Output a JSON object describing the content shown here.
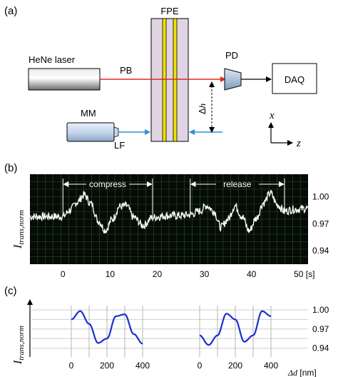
{
  "panel_a": {
    "label": "(a)",
    "fpe": "FPE",
    "laser": "HeNe laser",
    "pb": "PB",
    "pd": "PD",
    "daq": "DAQ",
    "mm": "MM",
    "lf": "LF",
    "dh_delta": "Δ",
    "dh_h": "h",
    "axis_x": "x",
    "axis_z": "z"
  },
  "panel_b": {
    "label": "(b)",
    "ylabel_main": "I",
    "ylabel_sub": "trans,norm",
    "compress": "compress",
    "release": "release",
    "unit": "[s]"
  },
  "panel_c": {
    "label": "(c)",
    "ylabel_main": "I",
    "ylabel_sub": "trans,norm",
    "xlabel_delta": "Δ",
    "xlabel_d": "d",
    "xlabel_unit": "[nm]"
  },
  "chart_data": [
    {
      "type": "line",
      "panel": "b",
      "xlabel": "[s]",
      "ylabel": "I trans,norm",
      "x_ticks": [
        "0",
        "10",
        "20",
        "30",
        "40",
        "50"
      ],
      "y_ticks": [
        "1.00",
        "0.97",
        "0.94"
      ],
      "xlim": [
        -7,
        52
      ],
      "ylim": [
        0.925,
        1.025
      ],
      "annotations": [
        {
          "text": "compress",
          "x_start": 0,
          "x_end": 19
        },
        {
          "text": "release",
          "x_start": 27,
          "x_end": 47
        }
      ],
      "series": [
        {
          "x": [
            -7,
            -3,
            0,
            1.5,
            3,
            4.5,
            6,
            7.5,
            9,
            10.5,
            12,
            13.5,
            15,
            17,
            19,
            22,
            25,
            27,
            29,
            30.5,
            32,
            33.5,
            35,
            36.5,
            38,
            39.5,
            41,
            42.5,
            44,
            45.5,
            47,
            49,
            52
          ],
          "y": [
            0.978,
            0.978,
            0.978,
            0.985,
            0.994,
            1.002,
            0.992,
            0.973,
            0.963,
            0.975,
            0.989,
            0.99,
            0.977,
            0.968,
            0.977,
            0.979,
            0.979,
            0.98,
            0.984,
            0.99,
            0.984,
            0.966,
            0.975,
            0.99,
            0.978,
            0.962,
            0.976,
            0.993,
            1.004,
            0.991,
            0.984,
            0.986,
            0.987
          ]
        }
      ]
    },
    {
      "type": "line",
      "panel": "c",
      "xlabel": "Δd [nm]",
      "ylabel": "I trans,norm",
      "x_ticks": [
        "0",
        "200",
        "400",
        "0",
        "200",
        "400"
      ],
      "y_ticks": [
        "1.00",
        "0.97",
        "0.94"
      ],
      "ylim": [
        0.925,
        1.01
      ],
      "series": [
        {
          "x": [
            0,
            50,
            100,
            150,
            200,
            250,
            300,
            350,
            400
          ],
          "y": [
            0.985,
            0.998,
            0.978,
            0.948,
            0.955,
            0.99,
            0.993,
            0.962,
            0.947
          ]
        },
        {
          "x": [
            0,
            50,
            100,
            150,
            200,
            250,
            300,
            350,
            400
          ],
          "y": [
            0.96,
            0.945,
            0.96,
            0.994,
            0.985,
            0.95,
            0.96,
            0.998,
            0.99
          ]
        }
      ]
    }
  ]
}
